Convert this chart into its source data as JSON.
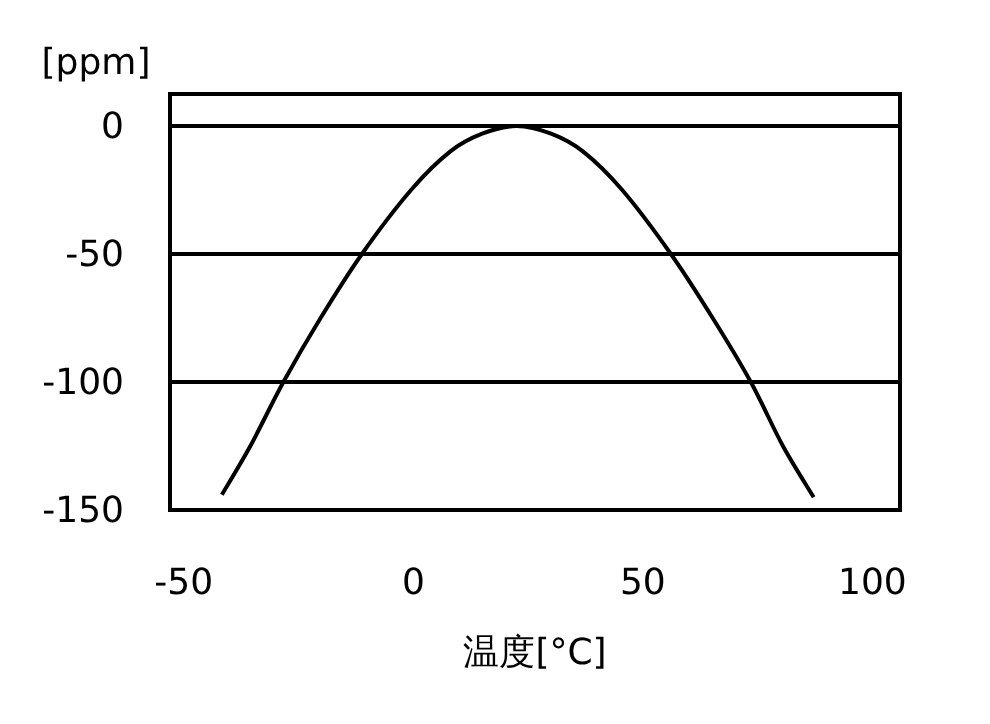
{
  "chart_data": {
    "type": "line",
    "xlabel": "温度[°C]",
    "ylabel": "[ppm]",
    "xlim": [
      -53,
      106
    ],
    "ylim": [
      -150,
      12.5
    ],
    "xticks": [
      -50,
      0,
      50,
      100
    ],
    "yticks": [
      -150,
      -100,
      -50,
      0
    ],
    "grid": "y",
    "series": [
      {
        "color": "#000000",
        "x": [
          -41.7,
          -35.5,
          -28.3,
          -20.2,
          -11.2,
          -0.5,
          8,
          15,
          22.5,
          30,
          37,
          45.5,
          56.1,
          65.2,
          73.5,
          80.5,
          87.2
        ],
        "values": [
          -144,
          -125,
          -100,
          -75,
          -50,
          -25,
          -10,
          -3,
          0,
          -3,
          -10,
          -25,
          -50,
          -75,
          -100,
          -125,
          -145
        ]
      }
    ]
  }
}
